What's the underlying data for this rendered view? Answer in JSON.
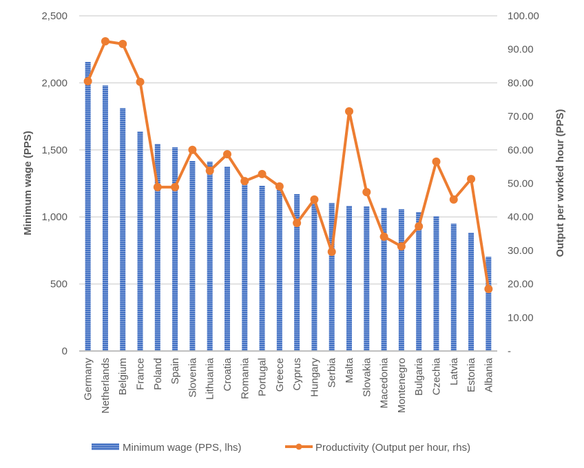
{
  "chart_data": {
    "type": "bar",
    "title": "",
    "categories": [
      "Germany",
      "Netherlands",
      "Belgium",
      "France",
      "Poland",
      "Spain",
      "Slovenia",
      "Lithuania",
      "Croatia",
      "Romania",
      "Portugal",
      "Greece",
      "Cyprus",
      "Hungary",
      "Serbia",
      "Malta",
      "Slovakia",
      "Macedonia",
      "Montenegro",
      "Bulgaria",
      "Czechia",
      "Latvia",
      "Estonia",
      "Albania"
    ],
    "series": [
      {
        "name": "Minimum wage (PPS, lhs)",
        "type": "bar",
        "axis": "left",
        "color": "#4472C4",
        "values": [
          2156,
          1981,
          1812,
          1638,
          1545,
          1520,
          1417,
          1412,
          1376,
          1242,
          1232,
          1201,
          1170,
          1129,
          1104,
          1083,
          1078,
          1068,
          1058,
          1037,
          1006,
          950,
          883,
          703
        ]
      },
      {
        "name": "Productivity (Output per hour, rhs)",
        "type": "line",
        "axis": "right",
        "color": "#ED7D31",
        "values": [
          80.5,
          92.4,
          91.6,
          80.3,
          48.9,
          48.9,
          60.0,
          53.8,
          58.7,
          50.7,
          52.8,
          49.1,
          38.2,
          45.2,
          29.6,
          71.5,
          47.4,
          34.1,
          31.2,
          37.2,
          56.5,
          45.2,
          51.3,
          18.5
        ]
      }
    ],
    "ylabel": "Minimum wage (PPS)",
    "y2label": "Output per worked hour (PPS)",
    "ylim": [
      0,
      2500
    ],
    "y2lim": [
      0,
      100
    ],
    "yticks": [
      "0",
      "500",
      "1,000",
      "1,500",
      "2,000",
      "2,500"
    ],
    "y2ticks": [
      "-",
      "10.00",
      "20.00",
      "30.00",
      "40.00",
      "50.00",
      "60.00",
      "70.00",
      "80.00",
      "90.00",
      "100.00"
    ],
    "grid": true,
    "legend": "bottom"
  }
}
